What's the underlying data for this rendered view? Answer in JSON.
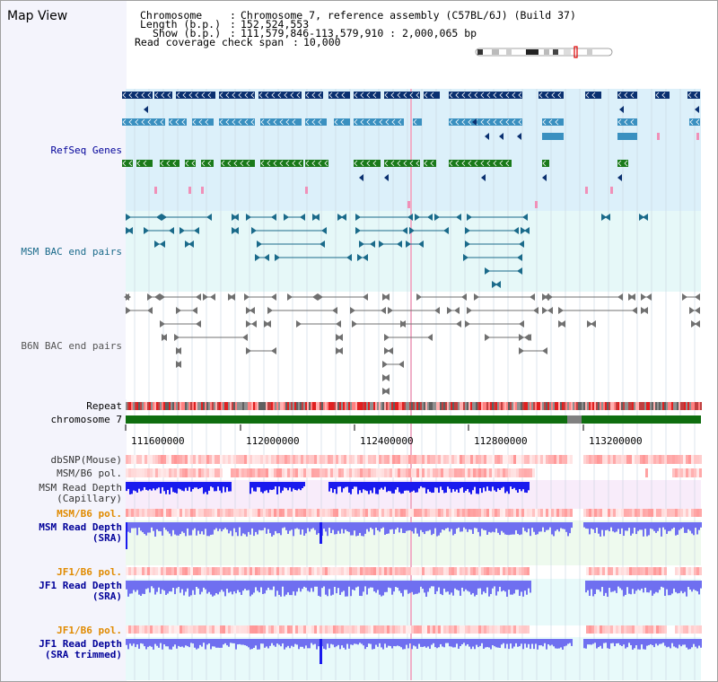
{
  "view_title": "Map View",
  "info": {
    "chromosome_label": "Chromosome",
    "chromosome_value": "Chromosome 7, reference assembly (C57BL/6J) (Build 37)",
    "length_label": "Length (b.p.)",
    "length_value": "152,524,553",
    "show_label": "Show (b.p.)",
    "show_value": "111,579,846-113,579,910 : 2,000,065 bp",
    "coverage_label": "Read coverage check span",
    "coverage_value": "10,000"
  },
  "tracks": {
    "refseq": "RefSeq Genes",
    "msm_bac": "MSM BAC end pairs",
    "b6n_bac": "B6N BAC end pairs",
    "repeat": "Repeat",
    "chromosome": "chromosome 7",
    "dbsnp": "dbSNP(Mouse)",
    "msm_pol": "MSM/B6 pol.",
    "msm_depth_cap_1": "MSM Read Depth",
    "msm_depth_cap_2": "(Capillary)",
    "msm_pol_2": "MSM/B6 pol.",
    "msm_depth_sra_1": "MSM Read Depth",
    "msm_depth_sra_2": "(SRA)",
    "jf1_pol": "JF1/B6 pol.",
    "jf1_depth_1": "JF1 Read Depth",
    "jf1_depth_2": "(SRA)",
    "jf1_pol_2": "JF1/B6 pol.",
    "jf1_trim_1": "JF1 Read Depth",
    "jf1_trim_2": "(SRA trimmed)"
  },
  "axis_ticks": [
    "111600000",
    "112000000",
    "112400000",
    "112800000",
    "113200000"
  ],
  "colors": {
    "refseq_dark": "#0a3070",
    "refseq_mid": "#3a90c0",
    "refseq_green": "#1a7a1a",
    "msm_bac": "#1a6a8a",
    "b6n_bac": "#707070",
    "chromosome": "#0f6e0f",
    "depth_dark": "#1a1aee",
    "depth_light": "#6f6ff0",
    "pol": "#e05050",
    "label_blue": "#000099",
    "label_orange": "#e08a00"
  }
}
